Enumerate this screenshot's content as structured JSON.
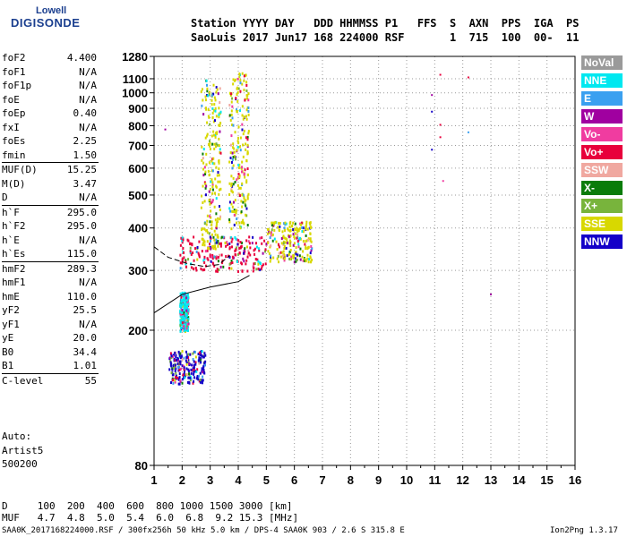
{
  "logo": {
    "top": "Lowell",
    "main": "DIGISONDE"
  },
  "header": {
    "line1": "Station YYYY DAY   DDD HHMMSS P1   FFS  S  AXN  PPS  IGA  PS",
    "line2": "SaoLuis 2017 Jun17 168 224000 RSF       1  715  100  00-  11"
  },
  "params": [
    {
      "name": "foF2",
      "value": "4.400",
      "sep": false
    },
    {
      "name": "foF1",
      "value": "N/A",
      "sep": false
    },
    {
      "name": "foF1p",
      "value": "N/A",
      "sep": false
    },
    {
      "name": "foE",
      "value": "N/A",
      "sep": false
    },
    {
      "name": "foEp",
      "value": "0.40",
      "sep": false
    },
    {
      "name": "fxI",
      "value": "N/A",
      "sep": false
    },
    {
      "name": "foEs",
      "value": "2.25",
      "sep": false
    },
    {
      "name": "fmin",
      "value": "1.50",
      "sep": false
    },
    {
      "name": "MUF(D)",
      "value": "15.25",
      "sep": true
    },
    {
      "name": "M(D)",
      "value": "3.47",
      "sep": false
    },
    {
      "name": "D",
      "value": "N/A",
      "sep": false
    },
    {
      "name": "h`F",
      "value": "295.0",
      "sep": true
    },
    {
      "name": "h`F2",
      "value": "295.0",
      "sep": false
    },
    {
      "name": "h`E",
      "value": "N/A",
      "sep": false
    },
    {
      "name": "h`Es",
      "value": "115.0",
      "sep": false
    },
    {
      "name": "hmF2",
      "value": "289.3",
      "sep": true
    },
    {
      "name": "hmF1",
      "value": "N/A",
      "sep": false
    },
    {
      "name": "hmE",
      "value": "110.0",
      "sep": false
    },
    {
      "name": "yF2",
      "value": "25.5",
      "sep": false
    },
    {
      "name": "yF1",
      "value": "N/A",
      "sep": false
    },
    {
      "name": "yE",
      "value": "20.0",
      "sep": false
    },
    {
      "name": "B0",
      "value": "34.4",
      "sep": false
    },
    {
      "name": "B1",
      "value": "1.01",
      "sep": false
    },
    {
      "name": "C-level",
      "value": "55",
      "sep": true
    }
  ],
  "auto_lines": [
    "Auto:",
    "Artist5",
    "500200"
  ],
  "legend": [
    {
      "label": "NoVal",
      "color": "#9a9a9a"
    },
    {
      "label": "NNE",
      "color": "#00e8f0"
    },
    {
      "label": "E",
      "color": "#3aa0f0"
    },
    {
      "label": "W",
      "color": "#a000a0"
    },
    {
      "label": "Vo-",
      "color": "#f03ca0"
    },
    {
      "label": "Vo+",
      "color": "#e8003c"
    },
    {
      "label": "SSW",
      "color": "#f0a8a0"
    },
    {
      "label": "X-",
      "color": "#0a7c0a"
    },
    {
      "label": "X+",
      "color": "#78b43c"
    },
    {
      "label": "SSE",
      "color": "#d8d800"
    },
    {
      "label": "NNW",
      "color": "#1400c8"
    }
  ],
  "bottom": {
    "d_row": "D     100  200  400  600  800 1000 1500 3000 [km]",
    "muf_row": "MUF   4.7  4.8  5.0  5.4  6.0  6.8  9.2 15.3 [MHz]"
  },
  "footer": {
    "left": "SAA0K_2017168224000.RSF / 300fx256h 50 kHz 5.0 km / DPS-4 SAA0K 903 / 2.6 S 315.8 E",
    "right": "Ion2Png 1.3.17"
  },
  "chart_data": {
    "type": "scatter",
    "title": "",
    "xlabel": "",
    "ylabel": "",
    "xlim": [
      1,
      16
    ],
    "ylim": [
      80,
      1280
    ],
    "y_scale": "log",
    "x_ticks": [
      1,
      2,
      3,
      4,
      5,
      6,
      7,
      8,
      9,
      10,
      11,
      12,
      13,
      14,
      15,
      16
    ],
    "y_ticks": [
      80,
      200,
      300,
      400,
      500,
      600,
      700,
      800,
      900,
      1000,
      1100,
      1280
    ],
    "grid": true,
    "scatter_points": [
      {
        "x": 10.9,
        "y": 985,
        "label": "W"
      },
      {
        "x": 10.9,
        "y": 880,
        "label": "NNW"
      },
      {
        "x": 10.9,
        "y": 680,
        "label": "NNW"
      },
      {
        "x": 11.2,
        "y": 1130,
        "label": "Vo+"
      },
      {
        "x": 11.2,
        "y": 805,
        "label": "Vo+"
      },
      {
        "x": 11.2,
        "y": 740,
        "label": "Vo+"
      },
      {
        "x": 11.3,
        "y": 550,
        "label": "Vo-"
      },
      {
        "x": 12.2,
        "y": 1110,
        "label": "Vo+"
      },
      {
        "x": 12.2,
        "y": 765,
        "label": "E"
      },
      {
        "x": 13.0,
        "y": 255,
        "label": "W"
      },
      {
        "x": 1.4,
        "y": 780,
        "label": "W"
      }
    ],
    "echo_regions": [
      {
        "x": [
          1.9,
          5.0
        ],
        "y": [
          300,
          380
        ],
        "label": "Vo+"
      },
      {
        "x": 3.0,
        "y": [
          350,
          1100
        ],
        "label": "SSE"
      },
      {
        "x": 4.0,
        "y": [
          400,
          1150
        ],
        "label": "SSE"
      },
      {
        "x": [
          5.0,
          6.6
        ],
        "y": [
          320,
          420
        ],
        "label": "SSE"
      },
      {
        "x": [
          1.5,
          2.8
        ],
        "y": [
          140,
          175
        ],
        "label": "NNW"
      },
      {
        "x": [
          1.9,
          2.2
        ],
        "y": [
          200,
          260
        ],
        "label": "NNE"
      }
    ],
    "traces": [
      {
        "name": "o-trace",
        "x": [
          1.0,
          2.0,
          3.0,
          4.0,
          4.4
        ],
        "y": [
          225,
          255,
          268,
          278,
          290
        ]
      },
      {
        "name": "x-trace",
        "x": [
          1.0,
          1.5,
          2.2,
          2.8,
          3.3,
          3.7
        ],
        "y": [
          352,
          328,
          314,
          308,
          312,
          332
        ]
      }
    ]
  }
}
